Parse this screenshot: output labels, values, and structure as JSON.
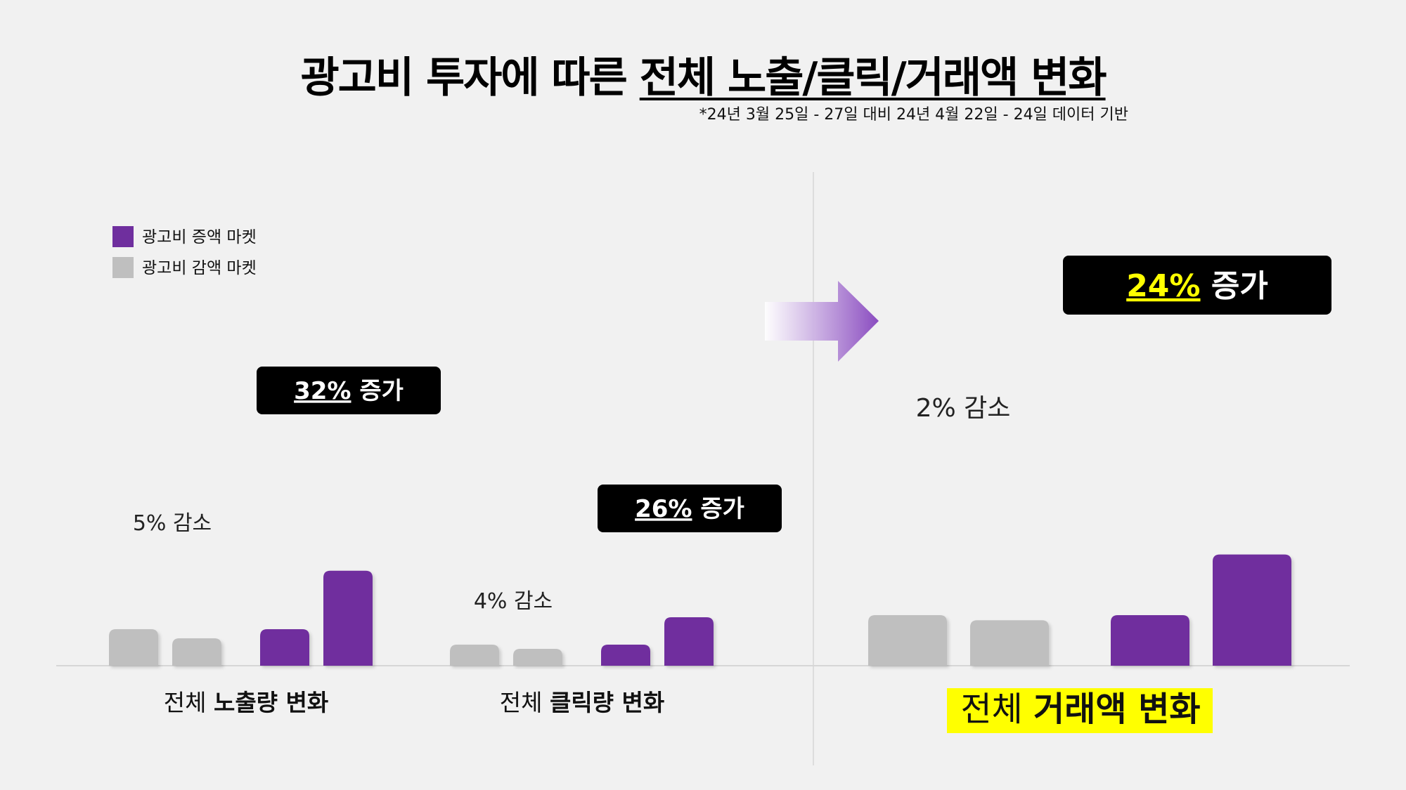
{
  "title": {
    "prefix": "광고비 투자에 따른 ",
    "highlight": "전체 노출/클릭/거래액 변화"
  },
  "note": "*24년 3월 25일 - 27일 대비 24년 4월 22일 - 24일 데이터 기반",
  "legend": [
    {
      "label": "광고비 증액 마켓",
      "color": "#6f2f9e"
    },
    {
      "label": "광고비 감액 마켓",
      "color": "#bfbfbf"
    }
  ],
  "colors": {
    "increase": "#6f2f9e",
    "decrease": "#bfbfbf",
    "badge_bg": "#000000",
    "highlight": "#ffff00"
  },
  "chart_data": [
    {
      "type": "bar",
      "title_plain": "전체 ",
      "title_bold": "노출량 변화",
      "series": [
        {
          "name": "광고비 감액 마켓",
          "values": [
            100,
            95
          ],
          "label": "5% 감소"
        },
        {
          "name": "광고비 증액 마켓",
          "values": [
            100,
            132
          ],
          "pct": "32%",
          "suffix": " 증가"
        }
      ]
    },
    {
      "type": "bar",
      "title_plain": "전체 ",
      "title_bold": "클릭량 변화",
      "series": [
        {
          "name": "광고비 감액 마켓",
          "values": [
            100,
            96
          ],
          "label": "4% 감소"
        },
        {
          "name": "광고비 증액 마켓",
          "values": [
            100,
            126
          ],
          "pct": "26%",
          "suffix": " 증가"
        }
      ]
    },
    {
      "type": "bar",
      "title_plain": "전체 ",
      "title_bold": "거래액 변화",
      "series": [
        {
          "name": "광고비 감액 마켓",
          "values": [
            100,
            98
          ],
          "label": "2% 감소"
        },
        {
          "name": "광고비 증액 마켓",
          "values": [
            100,
            124
          ],
          "pct": "24%",
          "suffix": " 증가"
        }
      ]
    }
  ]
}
